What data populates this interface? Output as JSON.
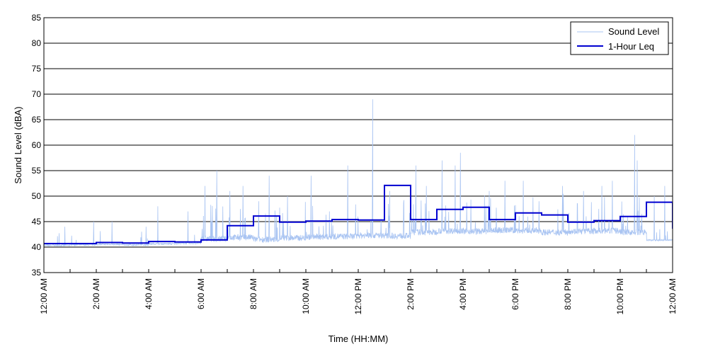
{
  "chart_data": {
    "type": "line",
    "title": "",
    "xlabel": "Time (HH:MM)",
    "ylabel": "Sound Level (dBA)",
    "ylim": [
      35,
      85
    ],
    "yticks": [
      35,
      40,
      45,
      50,
      55,
      60,
      65,
      70,
      75,
      80,
      85
    ],
    "xlim_hours": [
      0,
      24
    ],
    "xticks": [
      {
        "hour": 0,
        "label": "12:00 AM"
      },
      {
        "hour": 2,
        "label": "2:00 AM"
      },
      {
        "hour": 4,
        "label": "4:00 AM"
      },
      {
        "hour": 6,
        "label": "6:00 AM"
      },
      {
        "hour": 8,
        "label": "8:00 AM"
      },
      {
        "hour": 10,
        "label": "10:00 AM"
      },
      {
        "hour": 12,
        "label": "12:00 PM"
      },
      {
        "hour": 14,
        "label": "2:00 PM"
      },
      {
        "hour": 16,
        "label": "4:00 PM"
      },
      {
        "hour": 18,
        "label": "6:00 PM"
      },
      {
        "hour": 20,
        "label": "8:00 PM"
      },
      {
        "hour": 22,
        "label": "10:00 PM"
      },
      {
        "hour": 24,
        "label": "12:00 AM"
      }
    ],
    "grid": "horizontal",
    "legend_position": "top-right",
    "series": [
      {
        "name": "Sound Level",
        "color": "#a9c4f2",
        "style": "thin-line",
        "baseline_by_hour": [
          40.5,
          40.6,
          40.7,
          40.6,
          40.8,
          40.9,
          41.3,
          41.6,
          41.2,
          41.5,
          41.7,
          41.8,
          42.0,
          41.9,
          42.6,
          42.9,
          42.8,
          43.0,
          42.9,
          42.6,
          42.8,
          42.9,
          42.6,
          41.5
        ],
        "peaks": [
          {
            "hour": 0.8,
            "value": 44
          },
          {
            "hour": 1.9,
            "value": 45
          },
          {
            "hour": 2.6,
            "value": 45
          },
          {
            "hour": 3.9,
            "value": 44
          },
          {
            "hour": 4.35,
            "value": 48
          },
          {
            "hour": 5.5,
            "value": 47
          },
          {
            "hour": 6.15,
            "value": 52
          },
          {
            "hour": 6.6,
            "value": 55
          },
          {
            "hour": 7.1,
            "value": 51
          },
          {
            "hour": 7.6,
            "value": 52
          },
          {
            "hour": 8.2,
            "value": 49
          },
          {
            "hour": 8.6,
            "value": 54
          },
          {
            "hour": 9.3,
            "value": 50
          },
          {
            "hour": 10.2,
            "value": 54
          },
          {
            "hour": 10.9,
            "value": 47
          },
          {
            "hour": 11.6,
            "value": 56
          },
          {
            "hour": 12.55,
            "value": 69
          },
          {
            "hour": 13.2,
            "value": 51
          },
          {
            "hour": 14.2,
            "value": 56
          },
          {
            "hour": 14.6,
            "value": 52
          },
          {
            "hour": 15.2,
            "value": 57
          },
          {
            "hour": 15.7,
            "value": 56
          },
          {
            "hour": 15.9,
            "value": 58.5
          },
          {
            "hour": 17.0,
            "value": 51
          },
          {
            "hour": 17.6,
            "value": 53
          },
          {
            "hour": 18.3,
            "value": 53
          },
          {
            "hour": 18.9,
            "value": 49
          },
          {
            "hour": 19.8,
            "value": 52
          },
          {
            "hour": 20.6,
            "value": 51
          },
          {
            "hour": 21.3,
            "value": 52
          },
          {
            "hour": 21.7,
            "value": 53
          },
          {
            "hour": 22.55,
            "value": 62
          },
          {
            "hour": 22.65,
            "value": 57
          },
          {
            "hour": 23.3,
            "value": 50
          },
          {
            "hour": 23.7,
            "value": 52
          }
        ]
      },
      {
        "name": "1-Hour Leq",
        "color": "#0000d0",
        "style": "step",
        "hourly_values": [
          40.7,
          40.7,
          40.9,
          40.8,
          41.1,
          41.0,
          41.4,
          44.2,
          46.1,
          44.9,
          45.1,
          45.4,
          45.3,
          52.1,
          45.4,
          47.4,
          47.8,
          45.4,
          46.7,
          46.3,
          44.9,
          45.2,
          46.0,
          48.8,
          43.6
        ]
      }
    ]
  }
}
